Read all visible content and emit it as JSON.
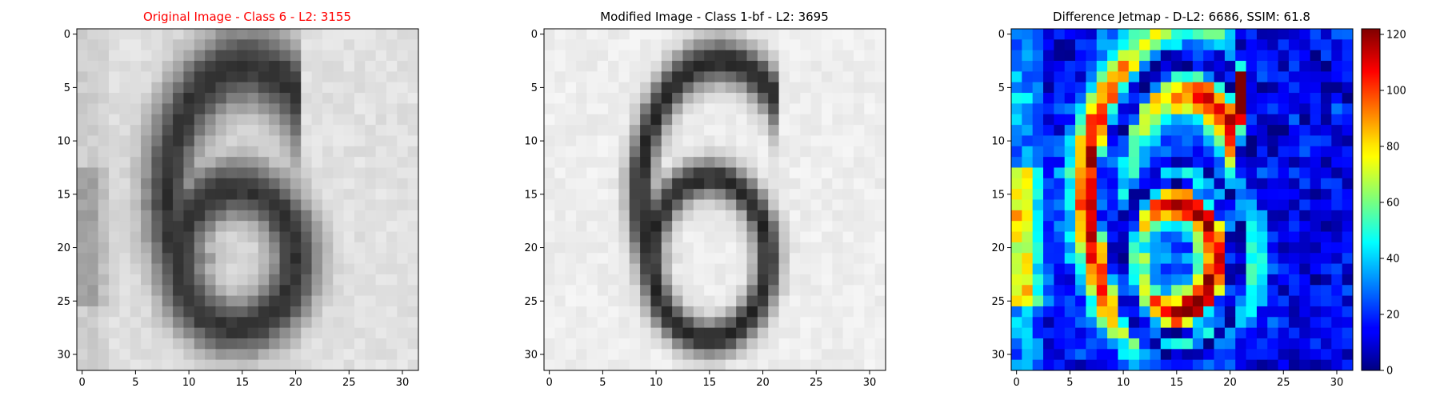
{
  "chart_data": [
    {
      "type": "heatmap",
      "title": "Original Image - Class 6 - L2: 3155",
      "title_color": "#ff0000",
      "colormap": "gray",
      "x_ticks": [
        0,
        5,
        10,
        15,
        20,
        25,
        30
      ],
      "y_ticks": [
        0,
        5,
        10,
        15,
        20,
        25,
        30
      ],
      "xlim": [
        -0.5,
        31.5
      ],
      "ylim": [
        31.5,
        -0.5
      ],
      "grid_size": [
        32,
        32
      ],
      "content": "grayscale digit 6, thick dark stroke on light gray background"
    },
    {
      "type": "heatmap",
      "title": "Modified Image - Class 1-bf - L2: 3695",
      "title_color": "#000000",
      "colormap": "gray",
      "x_ticks": [
        0,
        5,
        10,
        15,
        20,
        25,
        30
      ],
      "y_ticks": [
        0,
        5,
        10,
        15,
        20,
        25,
        30
      ],
      "xlim": [
        -0.5,
        31.5
      ],
      "ylim": [
        31.5,
        -0.5
      ],
      "grid_size": [
        32,
        32
      ],
      "content": "grayscale digit 6, thin dark stroke on near-white background"
    },
    {
      "type": "heatmap",
      "title": "Difference Jetmap - D-L2: 6686, SSIM: 61.8",
      "title_color": "#000000",
      "colormap": "jet",
      "x_ticks": [
        0,
        5,
        10,
        15,
        20,
        25,
        30
      ],
      "y_ticks": [
        0,
        5,
        10,
        15,
        20,
        25,
        30
      ],
      "xlim": [
        -0.5,
        31.5
      ],
      "ylim": [
        31.5,
        -0.5
      ],
      "grid_size": [
        32,
        32
      ],
      "colorbar": {
        "min": 0,
        "max": 122,
        "ticks": [
          0,
          20,
          40,
          60,
          80,
          100,
          120
        ]
      }
    }
  ]
}
